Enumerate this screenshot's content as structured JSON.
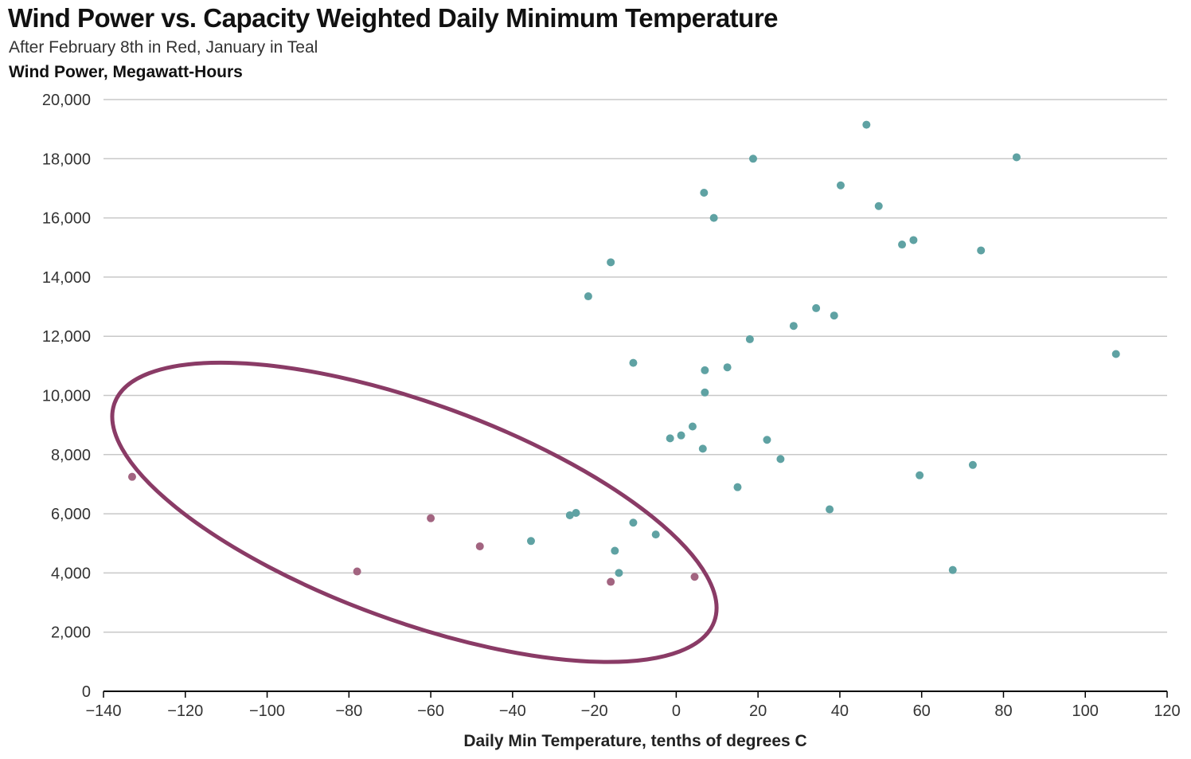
{
  "chart_data": {
    "type": "scatter",
    "title": "Wind Power vs. Capacity Weighted Daily Minimum Temperature",
    "subtitle": "After February 8th in Red, January in Teal",
    "ylabel": "Wind Power, Megawatt-Hours",
    "xlabel": "Daily Min Temperature, tenths of degrees C",
    "xlim": [
      -140,
      120
    ],
    "ylim": [
      0,
      20000
    ],
    "x_ticks": [
      -140,
      -120,
      -100,
      -80,
      -60,
      -40,
      -20,
      0,
      20,
      40,
      60,
      80,
      100,
      120
    ],
    "x_tick_labels": [
      "−140",
      "−120",
      "−100",
      "−80",
      "−60",
      "−40",
      "−20",
      "0",
      "20",
      "40",
      "60",
      "80",
      "100",
      "120"
    ],
    "y_ticks": [
      0,
      2000,
      4000,
      6000,
      8000,
      10000,
      12000,
      14000,
      16000,
      18000,
      20000
    ],
    "y_tick_labels": [
      "0",
      "2,000",
      "4,000",
      "6,000",
      "8,000",
      "10,000",
      "12,000",
      "14,000",
      "16,000",
      "18,000",
      "20,000"
    ],
    "grid": "horizontal",
    "colors": {
      "teal": "#5fa2a3",
      "red": "#a26480",
      "ellipse": "#8a3b66",
      "grid": "#c8c8c8",
      "axis": "#000000"
    },
    "series": [
      {
        "color": "#a26480",
        "points": [
          {
            "x": -133,
            "y": 7250
          },
          {
            "x": -78,
            "y": 4050
          },
          {
            "x": -60,
            "y": 5850
          },
          {
            "x": -48,
            "y": 4900
          },
          {
            "x": -16,
            "y": 3700
          },
          {
            "x": 4.5,
            "y": 3870
          }
        ]
      },
      {
        "color": "#5fa2a3",
        "points": [
          {
            "x": -35.5,
            "y": 5080
          },
          {
            "x": -26,
            "y": 5950
          },
          {
            "x": -24.5,
            "y": 6030
          },
          {
            "x": -15,
            "y": 4750
          },
          {
            "x": -14,
            "y": 4000
          },
          {
            "x": -10.5,
            "y": 5700
          },
          {
            "x": -5,
            "y": 5300
          },
          {
            "x": -21.5,
            "y": 13350
          },
          {
            "x": -16,
            "y": 14500
          },
          {
            "x": -10.5,
            "y": 11100
          },
          {
            "x": -1.5,
            "y": 8550
          },
          {
            "x": 1.2,
            "y": 8650
          },
          {
            "x": 4,
            "y": 8950
          },
          {
            "x": 6.5,
            "y": 8200
          },
          {
            "x": 7,
            "y": 10100
          },
          {
            "x": 7,
            "y": 10850
          },
          {
            "x": 6.8,
            "y": 16850
          },
          {
            "x": 9.2,
            "y": 16000
          },
          {
            "x": 12.5,
            "y": 10950
          },
          {
            "x": 15,
            "y": 6900
          },
          {
            "x": 18,
            "y": 11900
          },
          {
            "x": 18.8,
            "y": 18000
          },
          {
            "x": 22.2,
            "y": 8500
          },
          {
            "x": 25.5,
            "y": 7850
          },
          {
            "x": 28.7,
            "y": 12350
          },
          {
            "x": 34.2,
            "y": 12950
          },
          {
            "x": 37.5,
            "y": 6150
          },
          {
            "x": 38.6,
            "y": 12700
          },
          {
            "x": 40.2,
            "y": 17100
          },
          {
            "x": 46.5,
            "y": 19150
          },
          {
            "x": 49.5,
            "y": 16400
          },
          {
            "x": 55.2,
            "y": 15100
          },
          {
            "x": 58,
            "y": 15250
          },
          {
            "x": 59.5,
            "y": 7300
          },
          {
            "x": 67.6,
            "y": 4100
          },
          {
            "x": 72.5,
            "y": 7650
          },
          {
            "x": 74.5,
            "y": 14900
          },
          {
            "x": 83.2,
            "y": 18050
          },
          {
            "x": 107.5,
            "y": 11400
          }
        ]
      }
    ],
    "annotation": {
      "type": "ellipse",
      "center": {
        "x": -64,
        "y": 6050
      },
      "semi_axis_x_units": 78,
      "semi_axis_y_units": 3680,
      "rotation_deg": 20
    }
  }
}
